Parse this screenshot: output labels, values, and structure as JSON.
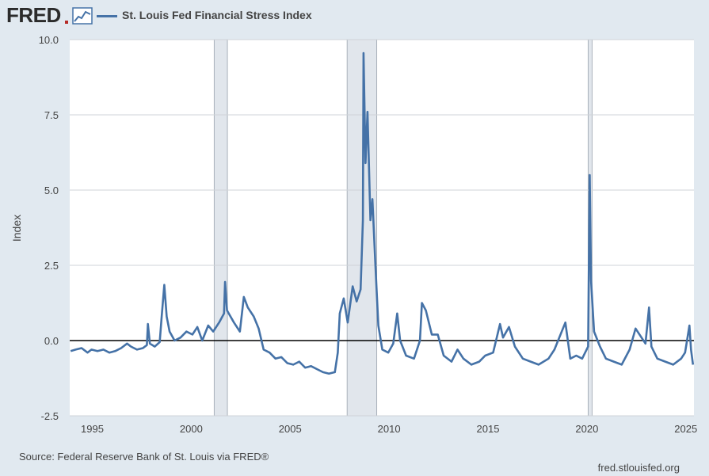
{
  "header": {
    "logo_text": "FRED",
    "series_title": "St. Louis Fed Financial Stress Index"
  },
  "footer": {
    "source": "Source: Federal Reserve Bank of St. Louis via FRED®",
    "site": "fred.stlouisfed.org"
  },
  "colors": {
    "series": "#4572a7",
    "recession": "#e1e6ec",
    "background": "#e1e9f0",
    "plot": "#ffffff"
  },
  "chart_data": {
    "type": "line",
    "title": "St. Louis Fed Financial Stress Index",
    "ylabel": "Index",
    "xlabel": "",
    "xlim": [
      1993.9,
      2025.45
    ],
    "ylim": [
      -2.5,
      10.0
    ],
    "yticks": [
      -2.5,
      0.0,
      2.5,
      5.0,
      7.5,
      10.0
    ],
    "ytick_labels": [
      "-2.5",
      "0.0",
      "2.5",
      "5.0",
      "7.5",
      "10.0"
    ],
    "xticks": [
      1995,
      2000,
      2005,
      2010,
      2015,
      2020,
      2025
    ],
    "xtick_labels": [
      "1995",
      "2000",
      "2005",
      "2010",
      "2015",
      "2020",
      "2025"
    ],
    "reference_line": 0.0,
    "grid": "horizontal",
    "recessions": [
      {
        "start": 2001.2,
        "end": 2001.87
      },
      {
        "start": 2007.92,
        "end": 2009.42
      },
      {
        "start": 2020.1,
        "end": 2020.3
      }
    ],
    "series": [
      {
        "name": "St. Louis Fed Financial Stress Index",
        "points": [
          [
            1993.95,
            -0.35
          ],
          [
            1994.2,
            -0.3
          ],
          [
            1994.5,
            -0.25
          ],
          [
            1994.8,
            -0.4
          ],
          [
            1995.0,
            -0.3
          ],
          [
            1995.3,
            -0.35
          ],
          [
            1995.6,
            -0.3
          ],
          [
            1995.9,
            -0.4
          ],
          [
            1996.2,
            -0.35
          ],
          [
            1996.5,
            -0.25
          ],
          [
            1996.8,
            -0.1
          ],
          [
            1997.0,
            -0.2
          ],
          [
            1997.3,
            -0.3
          ],
          [
            1997.6,
            -0.25
          ],
          [
            1997.8,
            -0.15
          ],
          [
            1997.85,
            0.55
          ],
          [
            1997.95,
            -0.1
          ],
          [
            1998.2,
            -0.2
          ],
          [
            1998.45,
            -0.05
          ],
          [
            1998.55,
            0.8
          ],
          [
            1998.68,
            1.85
          ],
          [
            1998.8,
            0.8
          ],
          [
            1998.95,
            0.3
          ],
          [
            1999.2,
            0.0
          ],
          [
            1999.5,
            0.1
          ],
          [
            1999.8,
            0.3
          ],
          [
            2000.1,
            0.2
          ],
          [
            2000.35,
            0.45
          ],
          [
            2000.6,
            0.0
          ],
          [
            2000.9,
            0.5
          ],
          [
            2001.15,
            0.3
          ],
          [
            2001.45,
            0.6
          ],
          [
            2001.7,
            0.9
          ],
          [
            2001.75,
            1.95
          ],
          [
            2001.85,
            1.0
          ],
          [
            2002.2,
            0.6
          ],
          [
            2002.5,
            0.3
          ],
          [
            2002.7,
            1.45
          ],
          [
            2002.9,
            1.1
          ],
          [
            2003.2,
            0.8
          ],
          [
            2003.45,
            0.4
          ],
          [
            2003.7,
            -0.3
          ],
          [
            2004.0,
            -0.4
          ],
          [
            2004.3,
            -0.6
          ],
          [
            2004.6,
            -0.55
          ],
          [
            2004.9,
            -0.75
          ],
          [
            2005.2,
            -0.8
          ],
          [
            2005.5,
            -0.7
          ],
          [
            2005.8,
            -0.9
          ],
          [
            2006.1,
            -0.85
          ],
          [
            2006.4,
            -0.95
          ],
          [
            2006.7,
            -1.05
          ],
          [
            2007.0,
            -1.1
          ],
          [
            2007.3,
            -1.05
          ],
          [
            2007.45,
            -0.4
          ],
          [
            2007.55,
            0.9
          ],
          [
            2007.75,
            1.4
          ],
          [
            2007.95,
            0.6
          ],
          [
            2008.2,
            1.8
          ],
          [
            2008.4,
            1.3
          ],
          [
            2008.6,
            1.7
          ],
          [
            2008.72,
            4.0
          ],
          [
            2008.75,
            9.55
          ],
          [
            2008.85,
            5.9
          ],
          [
            2008.95,
            7.6
          ],
          [
            2009.1,
            4.0
          ],
          [
            2009.2,
            4.7
          ],
          [
            2009.35,
            2.5
          ],
          [
            2009.5,
            0.5
          ],
          [
            2009.7,
            -0.3
          ],
          [
            2010.0,
            -0.4
          ],
          [
            2010.25,
            -0.1
          ],
          [
            2010.45,
            0.9
          ],
          [
            2010.6,
            0.0
          ],
          [
            2010.9,
            -0.5
          ],
          [
            2011.3,
            -0.6
          ],
          [
            2011.6,
            0.0
          ],
          [
            2011.7,
            1.25
          ],
          [
            2011.9,
            1.0
          ],
          [
            2012.2,
            0.2
          ],
          [
            2012.5,
            0.2
          ],
          [
            2012.8,
            -0.5
          ],
          [
            2013.2,
            -0.7
          ],
          [
            2013.5,
            -0.3
          ],
          [
            2013.8,
            -0.6
          ],
          [
            2014.2,
            -0.8
          ],
          [
            2014.6,
            -0.7
          ],
          [
            2014.9,
            -0.5
          ],
          [
            2015.3,
            -0.4
          ],
          [
            2015.65,
            0.55
          ],
          [
            2015.8,
            0.1
          ],
          [
            2016.1,
            0.45
          ],
          [
            2016.4,
            -0.2
          ],
          [
            2016.8,
            -0.6
          ],
          [
            2017.2,
            -0.7
          ],
          [
            2017.6,
            -0.8
          ],
          [
            2018.1,
            -0.6
          ],
          [
            2018.4,
            -0.3
          ],
          [
            2018.95,
            0.6
          ],
          [
            2019.2,
            -0.6
          ],
          [
            2019.5,
            -0.5
          ],
          [
            2019.8,
            -0.6
          ],
          [
            2020.1,
            -0.2
          ],
          [
            2020.18,
            5.5
          ],
          [
            2020.25,
            2.0
          ],
          [
            2020.4,
            0.3
          ],
          [
            2020.7,
            -0.2
          ],
          [
            2021.0,
            -0.6
          ],
          [
            2021.4,
            -0.7
          ],
          [
            2021.8,
            -0.8
          ],
          [
            2022.2,
            -0.3
          ],
          [
            2022.5,
            0.4
          ],
          [
            2022.8,
            0.1
          ],
          [
            2023.0,
            -0.1
          ],
          [
            2023.18,
            1.1
          ],
          [
            2023.3,
            -0.2
          ],
          [
            2023.6,
            -0.6
          ],
          [
            2024.0,
            -0.7
          ],
          [
            2024.4,
            -0.8
          ],
          [
            2024.8,
            -0.6
          ],
          [
            2025.0,
            -0.4
          ],
          [
            2025.22,
            0.5
          ],
          [
            2025.3,
            -0.3
          ],
          [
            2025.4,
            -0.8
          ]
        ]
      }
    ]
  }
}
